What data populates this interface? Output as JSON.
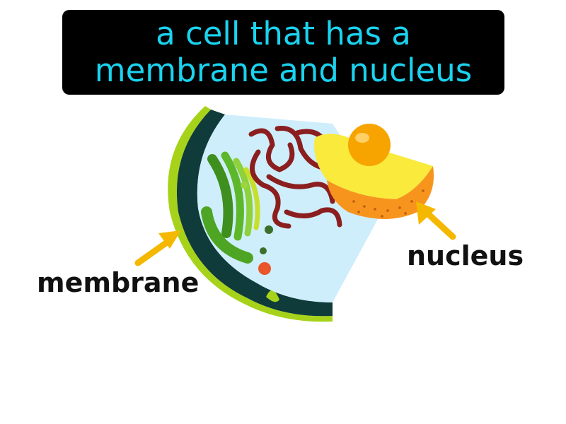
{
  "title": {
    "line1": "a cell that has a",
    "line2": "membrane and nucleus"
  },
  "labels": {
    "membrane": "membrane",
    "nucleus": "nucleus"
  },
  "colors": {
    "title_background": "#000000",
    "title_text": "#1ad3ef",
    "arrow": "#f5b800",
    "membrane_outer": "#a6d31a",
    "membrane_dark": "#0f3b3a",
    "cytoplasm": "#cfeefc",
    "nucleus_orange": "#f7941d",
    "nucleolus": "#f7a400",
    "er": "#8b1f1f",
    "golgi": "#5cb82a"
  }
}
